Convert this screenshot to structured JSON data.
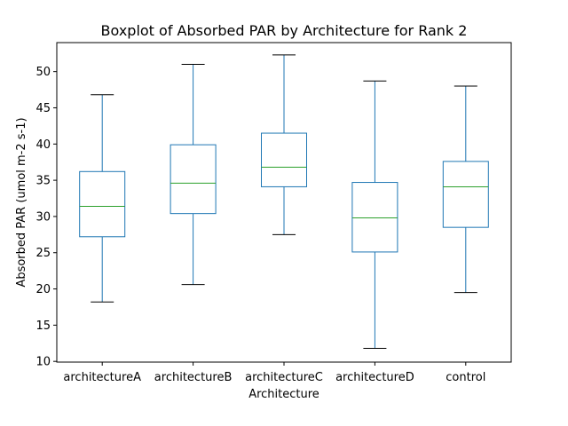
{
  "chart_data": {
    "type": "boxplot",
    "title": "Boxplot of Absorbed PAR by Architecture for Rank 2",
    "xlabel": "Architecture",
    "ylabel": "Absorbed PAR (umol m-2 s-1)",
    "ylim": [
      9.9,
      54.0
    ],
    "yticks": [
      10,
      15,
      20,
      25,
      30,
      35,
      40,
      45,
      50
    ],
    "grid": false,
    "colors": {
      "box": "#1f77b4",
      "median": "#2ca02c",
      "whisker_cap": "#000000"
    },
    "categories": [
      "architectureA",
      "architectureB",
      "architectureC",
      "architectureD",
      "control"
    ],
    "boxes": [
      {
        "name": "architectureA",
        "whisker_low": 18.2,
        "q1": 27.2,
        "median": 31.4,
        "q3": 36.2,
        "whisker_high": 46.8
      },
      {
        "name": "architectureB",
        "whisker_low": 20.6,
        "q1": 30.4,
        "median": 34.6,
        "q3": 39.9,
        "whisker_high": 51.0
      },
      {
        "name": "architectureC",
        "whisker_low": 27.5,
        "q1": 34.1,
        "median": 36.8,
        "q3": 41.5,
        "whisker_high": 52.3
      },
      {
        "name": "architectureD",
        "whisker_low": 11.8,
        "q1": 25.1,
        "median": 29.8,
        "q3": 34.7,
        "whisker_high": 48.7
      },
      {
        "name": "control",
        "whisker_low": 19.5,
        "q1": 28.5,
        "median": 34.1,
        "q3": 37.6,
        "whisker_high": 48.0
      }
    ]
  }
}
